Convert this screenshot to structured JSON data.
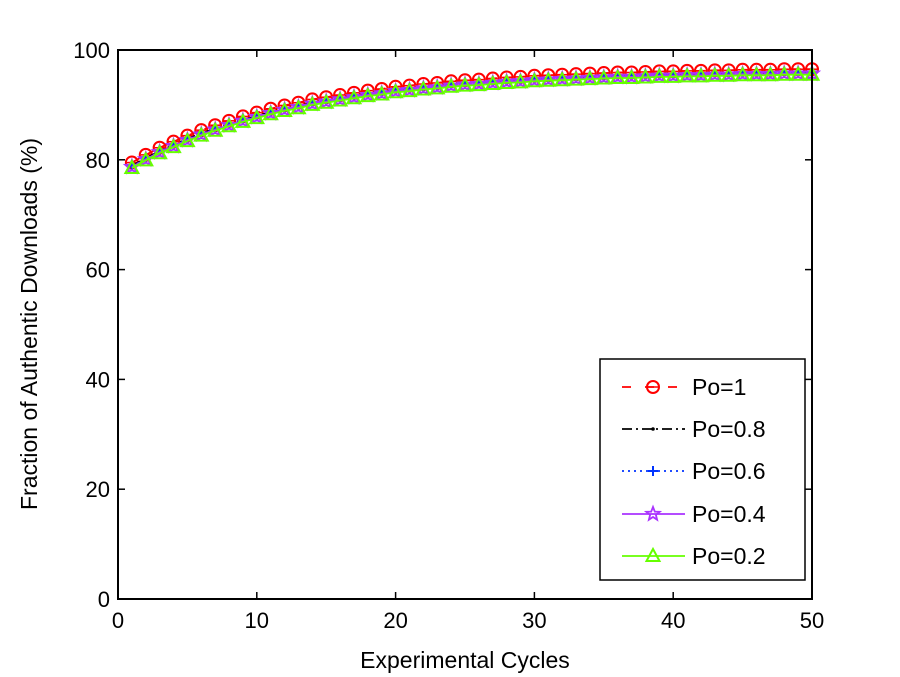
{
  "chart_data": {
    "type": "line",
    "title": "",
    "xlabel": "Experimental Cycles",
    "ylabel": "Fraction of Authentic Downloads (%)",
    "xlim": [
      0,
      50
    ],
    "ylim": [
      0,
      100
    ],
    "xticks": [
      0,
      10,
      20,
      30,
      40,
      50
    ],
    "yticks": [
      0,
      20,
      40,
      60,
      80,
      100
    ],
    "grid": false,
    "legend_position": "bottom-right",
    "x": [
      1,
      2,
      3,
      4,
      5,
      6,
      7,
      8,
      9,
      10,
      11,
      12,
      13,
      14,
      15,
      16,
      17,
      18,
      19,
      20,
      21,
      22,
      23,
      24,
      25,
      26,
      27,
      28,
      29,
      30,
      31,
      32,
      33,
      34,
      35,
      36,
      37,
      38,
      39,
      40,
      41,
      42,
      43,
      44,
      45,
      46,
      47,
      48,
      49,
      50
    ],
    "series": [
      {
        "name": "Po=1",
        "color": "#ff0000",
        "dash": "dashed",
        "marker": "circle-bar",
        "values": [
          79.5,
          80.9,
          82.2,
          83.3,
          84.4,
          85.4,
          86.3,
          87.1,
          87.9,
          88.6,
          89.3,
          89.9,
          90.4,
          91.0,
          91.4,
          91.8,
          92.2,
          92.6,
          92.9,
          93.3,
          93.5,
          93.8,
          94.0,
          94.3,
          94.5,
          94.6,
          94.8,
          95.0,
          95.1,
          95.3,
          95.4,
          95.5,
          95.6,
          95.7,
          95.8,
          95.9,
          95.9,
          96.0,
          96.1,
          96.1,
          96.2,
          96.2,
          96.3,
          96.3,
          96.4,
          96.4,
          96.4,
          96.5,
          96.5,
          96.5
        ]
      },
      {
        "name": "Po=0.8",
        "color": "#000000",
        "dash": "dashdot",
        "marker": "dot",
        "values": [
          78.9,
          80.3,
          81.6,
          82.7,
          83.8,
          84.8,
          85.7,
          86.5,
          87.3,
          88.0,
          88.7,
          89.3,
          89.8,
          90.4,
          90.8,
          91.2,
          91.6,
          92.0,
          92.3,
          92.7,
          92.9,
          93.2,
          93.4,
          93.7,
          93.9,
          94.0,
          94.2,
          94.4,
          94.5,
          94.7,
          94.8,
          94.9,
          95.0,
          95.1,
          95.2,
          95.3,
          95.3,
          95.4,
          95.5,
          95.5,
          95.6,
          95.6,
          95.7,
          95.7,
          95.8,
          95.8,
          95.8,
          95.9,
          95.9,
          95.9
        ]
      },
      {
        "name": "Po=0.6",
        "color": "#0033ff",
        "dash": "dotted",
        "marker": "plus",
        "values": [
          78.8,
          80.2,
          81.5,
          82.6,
          83.7,
          84.7,
          85.6,
          86.4,
          87.2,
          87.9,
          88.6,
          89.2,
          89.7,
          90.3,
          90.7,
          91.1,
          91.5,
          91.9,
          92.2,
          92.6,
          92.8,
          93.1,
          93.3,
          93.6,
          93.8,
          93.9,
          94.1,
          94.3,
          94.4,
          94.6,
          94.7,
          94.8,
          94.9,
          95.0,
          95.1,
          95.2,
          95.2,
          95.3,
          95.4,
          95.4,
          95.5,
          95.5,
          95.6,
          95.6,
          95.7,
          95.7,
          95.7,
          95.8,
          95.8,
          95.8
        ]
      },
      {
        "name": "Po=0.4",
        "color": "#aa33ff",
        "dash": "solid",
        "marker": "star",
        "values": [
          78.7,
          80.1,
          81.4,
          82.5,
          83.6,
          84.6,
          85.5,
          86.3,
          87.1,
          87.8,
          88.5,
          89.1,
          89.6,
          90.2,
          90.6,
          91.0,
          91.4,
          91.8,
          92.1,
          92.5,
          92.7,
          93.0,
          93.2,
          93.5,
          93.7,
          93.8,
          94.0,
          94.2,
          94.3,
          94.5,
          94.6,
          94.7,
          94.8,
          94.9,
          95.0,
          95.1,
          95.1,
          95.2,
          95.3,
          95.3,
          95.4,
          95.4,
          95.5,
          95.5,
          95.6,
          95.6,
          95.6,
          95.7,
          95.7,
          95.7
        ]
      },
      {
        "name": "Po=0.2",
        "color": "#66ff00",
        "dash": "solid",
        "marker": "triangle",
        "values": [
          78.5,
          79.9,
          81.2,
          82.3,
          83.4,
          84.4,
          85.3,
          86.1,
          86.9,
          87.6,
          88.3,
          88.9,
          89.4,
          90.0,
          90.4,
          90.8,
          91.2,
          91.6,
          91.9,
          92.3,
          92.5,
          92.8,
          93.0,
          93.3,
          93.5,
          93.6,
          93.8,
          94.0,
          94.1,
          94.3,
          94.4,
          94.5,
          94.6,
          94.7,
          94.8,
          94.9,
          94.9,
          95.0,
          95.1,
          95.1,
          95.2,
          95.2,
          95.3,
          95.3,
          95.4,
          95.4,
          95.4,
          95.5,
          95.5,
          95.5
        ]
      }
    ]
  }
}
